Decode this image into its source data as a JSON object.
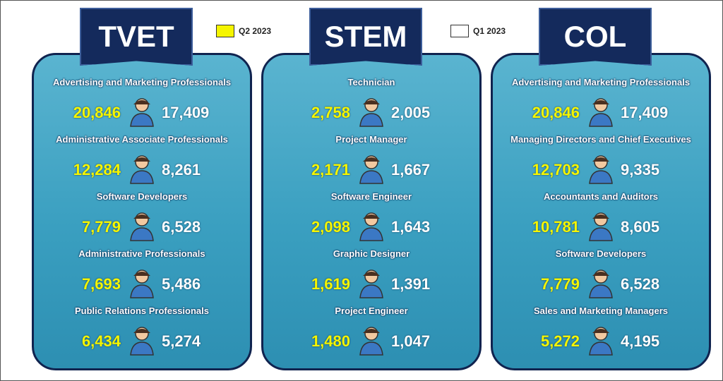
{
  "legend": [
    {
      "label": "Q2 2023",
      "color": "#f5f500"
    },
    {
      "label": "Q1 2023",
      "color": "#ffffff"
    }
  ],
  "panels": [
    {
      "title": "TVET",
      "items": [
        {
          "label": "Advertising and Marketing Professionals",
          "q2": "20,846",
          "q1": "17,409"
        },
        {
          "label": "Administrative Associate Professionals",
          "q2": "12,284",
          "q1": "8,261"
        },
        {
          "label": "Software Developers",
          "q2": "7,779",
          "q1": "6,528"
        },
        {
          "label": "Administrative Professionals",
          "q2": "7,693",
          "q1": "5,486"
        },
        {
          "label": "Public Relations Professionals",
          "q2": "6,434",
          "q1": "5,274"
        }
      ]
    },
    {
      "title": "STEM",
      "items": [
        {
          "label": "Technician",
          "q2": "2,758",
          "q1": "2,005"
        },
        {
          "label": "Project Manager",
          "q2": "2,171",
          "q1": "1,667"
        },
        {
          "label": "Software Engineer",
          "q2": "2,098",
          "q1": "1,643"
        },
        {
          "label": "Graphic Designer",
          "q2": "1,619",
          "q1": "1,391"
        },
        {
          "label": "Project Engineer",
          "q2": "1,480",
          "q1": "1,047"
        }
      ]
    },
    {
      "title": "COL",
      "items": [
        {
          "label": "Advertising and Marketing Professionals",
          "q2": "20,846",
          "q1": "17,409"
        },
        {
          "label": "Managing Directors and Chief Executives",
          "q2": "12,703",
          "q1": "9,335"
        },
        {
          "label": "Accountants and Auditors",
          "q2": "10,781",
          "q1": "8,605"
        },
        {
          "label": "Software Developers",
          "q2": "7,779",
          "q1": "6,528"
        },
        {
          "label": "Sales and Marketing Managers",
          "q2": "5,272",
          "q1": "4,195"
        }
      ]
    }
  ]
}
